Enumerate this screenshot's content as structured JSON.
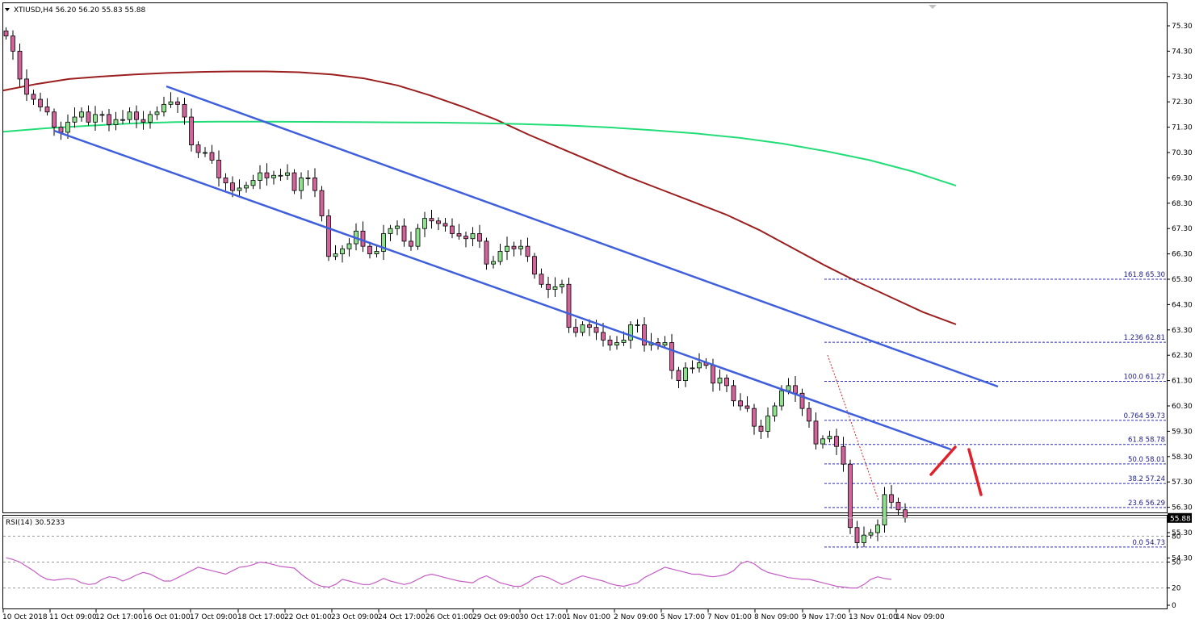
{
  "header": {
    "symbol_line": "XTIUSD,H4  56.20 56.20 55.83 55.88",
    "rsi_label": "RSI(14) 30.5233"
  },
  "colors": {
    "bull_body": "#8fe08f",
    "bear_body": "#d2649b",
    "channel": "#3f5fdc",
    "ma_fast": "#9b1f1f",
    "ma_slow": "#22dd77",
    "fib": "#2a2ac8",
    "rsi": "#c45cc4",
    "arrow": "#e0202a"
  },
  "chart_data": [
    {
      "type": "candlestick",
      "symbol": "XTIUSD",
      "timeframe": "H4",
      "last_price": 55.88,
      "ylim": [
        54.3,
        75.8
      ],
      "y_ticks": [
        "75.30",
        "74.30",
        "73.30",
        "72.30",
        "71.30",
        "70.30",
        "69.30",
        "68.30",
        "67.30",
        "66.30",
        "65.30",
        "64.30",
        "63.30",
        "62.30",
        "61.30",
        "60.30",
        "59.30",
        "58.30",
        "57.30",
        "56.30",
        "55.30",
        "54.30"
      ],
      "x_labels": [
        "10 Oct 2018",
        "11 Oct 09:00",
        "12 Oct 17:00",
        "16 Oct 01:00",
        "17 Oct 09:00",
        "18 Oct 17:00",
        "22 Oct 01:00",
        "23 Oct 09:00",
        "24 Oct 17:00",
        "26 Oct 01:00",
        "29 Oct 09:00",
        "30 Oct 17:00",
        "1 Nov 01:00",
        "2 Nov 09:00",
        "5 Nov 17:00",
        "7 Nov 01:00",
        "8 Nov 09:00",
        "9 Nov 17:00",
        "13 Nov 01:00",
        "14 Nov 09:00"
      ],
      "closes": [
        74.9,
        74.3,
        73.2,
        72.6,
        72.4,
        72.1,
        71.9,
        71.3,
        71.1,
        71.5,
        71.7,
        71.9,
        71.5,
        71.8,
        71.8,
        71.4,
        71.6,
        71.6,
        71.9,
        71.6,
        71.5,
        71.8,
        71.9,
        72.2,
        72.3,
        72.2,
        71.7,
        70.6,
        70.3,
        70.3,
        70.0,
        69.3,
        69.1,
        68.8,
        68.9,
        69.0,
        69.2,
        69.5,
        69.3,
        69.4,
        69.4,
        69.5,
        68.8,
        69.3,
        69.3,
        68.8,
        67.8,
        66.2,
        66.3,
        66.5,
        66.7,
        67.2,
        66.6,
        66.3,
        66.4,
        67.1,
        67.3,
        67.4,
        66.8,
        66.6,
        67.3,
        67.7,
        67.6,
        67.5,
        67.4,
        67.1,
        67.0,
        66.9,
        67.1,
        66.8,
        65.9,
        66.0,
        66.4,
        66.6,
        66.5,
        66.6,
        66.2,
        65.5,
        65.1,
        64.9,
        65.0,
        65.1,
        63.4,
        63.2,
        63.5,
        63.4,
        63.2,
        62.9,
        62.7,
        62.8,
        62.9,
        63.5,
        63.5,
        62.7,
        62.8,
        62.7,
        62.8,
        61.7,
        61.3,
        61.8,
        61.8,
        62.0,
        61.9,
        61.2,
        61.4,
        61.1,
        60.5,
        60.3,
        60.2,
        59.5,
        59.3,
        59.9,
        60.3,
        60.9,
        61.1,
        60.8,
        60.2,
        59.7,
        58.8,
        59.0,
        59.1,
        58.7,
        58.0,
        55.5,
        54.9,
        55.2,
        55.3,
        55.6,
        56.8,
        56.5,
        56.2,
        55.88
      ]
    },
    {
      "type": "line",
      "name": "ma_fast",
      "values": [
        72.75,
        73.0,
        73.2,
        73.3,
        73.38,
        73.44,
        73.48,
        73.5,
        73.5,
        73.47,
        73.38,
        73.22,
        72.95,
        72.55,
        72.1,
        71.6,
        71.0,
        70.45,
        69.9,
        69.35,
        68.85,
        68.35,
        67.85,
        67.25,
        66.55,
        65.85,
        65.2,
        64.6,
        64.0,
        63.52
      ]
    },
    {
      "type": "line",
      "name": "ma_slow",
      "values": [
        71.12,
        71.26,
        71.36,
        71.45,
        71.5,
        71.52,
        71.52,
        71.51,
        71.5,
        71.49,
        71.48,
        71.46,
        71.42,
        71.37,
        71.29,
        71.18,
        71.05,
        70.88,
        70.65,
        70.35,
        70.0,
        69.55,
        68.99
      ]
    },
    {
      "type": "fibonacci",
      "levels": [
        {
          "label": "161.8",
          "price": 65.3
        },
        {
          "label": "1.236",
          "price": 62.81
        },
        {
          "label": "100.0",
          "price": 61.27
        },
        {
          "label": "0.764",
          "price": 59.73
        },
        {
          "label": "61.8",
          "price": 58.78
        },
        {
          "label": "50.0",
          "price": 58.01
        },
        {
          "label": "38.2",
          "price": 57.24
        },
        {
          "label": "23.6",
          "price": 56.29
        },
        {
          "label": "0.0",
          "price": 54.73
        }
      ]
    },
    {
      "type": "line",
      "name": "RSI(14)",
      "ylim": [
        0,
        100
      ],
      "y_ticks": [
        "100",
        "80",
        "50",
        "20",
        "0"
      ],
      "values": [
        55,
        53,
        50,
        45,
        40,
        34,
        30,
        29,
        30,
        31,
        30,
        26,
        24,
        25,
        30,
        33,
        32,
        28,
        31,
        35,
        38,
        36,
        32,
        28,
        28,
        32,
        36,
        40,
        44,
        42,
        40,
        38,
        36,
        40,
        44,
        45,
        47,
        50,
        49,
        47,
        45,
        44,
        43,
        36,
        30,
        25,
        22,
        21,
        24,
        30,
        28,
        26,
        24,
        24,
        27,
        31,
        28,
        26,
        24,
        26,
        30,
        34,
        36,
        34,
        32,
        30,
        28,
        27,
        26,
        31,
        34,
        30,
        26,
        24,
        22,
        22,
        26,
        32,
        34,
        32,
        28,
        24,
        27,
        31,
        34,
        32,
        30,
        28,
        25,
        23,
        22,
        24,
        26,
        32,
        36,
        40,
        44,
        42,
        40,
        38,
        36,
        36,
        34,
        33,
        34,
        36,
        40,
        48,
        51,
        48,
        42,
        38,
        36,
        34,
        32,
        31,
        30,
        30,
        28,
        26,
        24,
        22,
        21,
        20,
        20,
        24,
        30,
        33,
        31,
        30
      ]
    }
  ]
}
